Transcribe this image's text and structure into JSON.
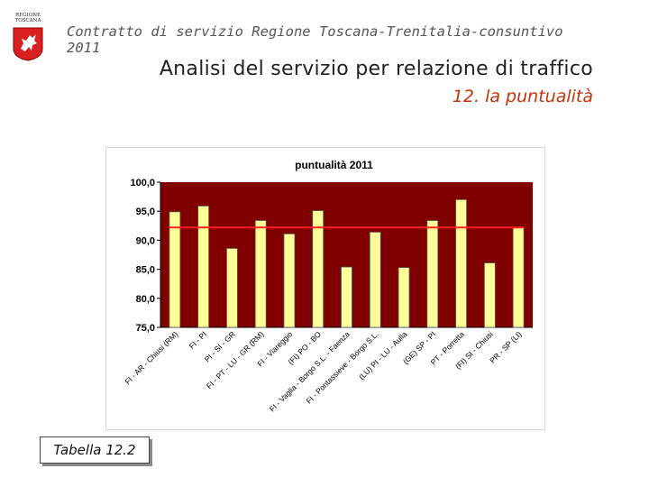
{
  "logo": {
    "line1": "REGIONE",
    "line2": "TOSCANA"
  },
  "header": "Contratto di servizio Regione Toscana-Trenitalia-consuntivo 2011",
  "title": "Analisi del servizio per relazione di traffico",
  "subtitle": "12. la puntualità",
  "table_label": "Tabella 12.2",
  "colors": {
    "plot_bg": "#800000",
    "bar": "#ffff99",
    "bar_stroke": "#555555",
    "avg_line": "#ff2020",
    "subtitle": "#c0340b"
  },
  "chart_data": {
    "type": "bar",
    "title": "puntualità 2011",
    "xlabel": "",
    "ylabel": "",
    "ylim": [
      75,
      100
    ],
    "yticks": [
      "75,0",
      "80,0",
      "85,0",
      "90,0",
      "95,0",
      "100,0"
    ],
    "categories": [
      "FI - AR - Chiusi (RM)",
      "FI - PI",
      "PI - SI - GR",
      "FI - PT - LU - GR (RM)",
      "FI - Viareggio",
      "(FI) PO - BO",
      "FI - Vaglia - Borgo S.L. - Faenza",
      "FI - Pontassieve - Borgo S.L.",
      "(LU) PI - LU - Aulla",
      "(GE) SP - PI",
      "PT - Porretta",
      "(FI) SI - Chiusi",
      "PR - SP (LI)"
    ],
    "values": [
      94.9,
      95.9,
      88.6,
      93.4,
      91.1,
      95.1,
      85.4,
      91.4,
      85.3,
      93.4,
      97.0,
      86.1,
      92.2
    ],
    "average_line": 92.2,
    "grid": false,
    "legend": "none"
  }
}
